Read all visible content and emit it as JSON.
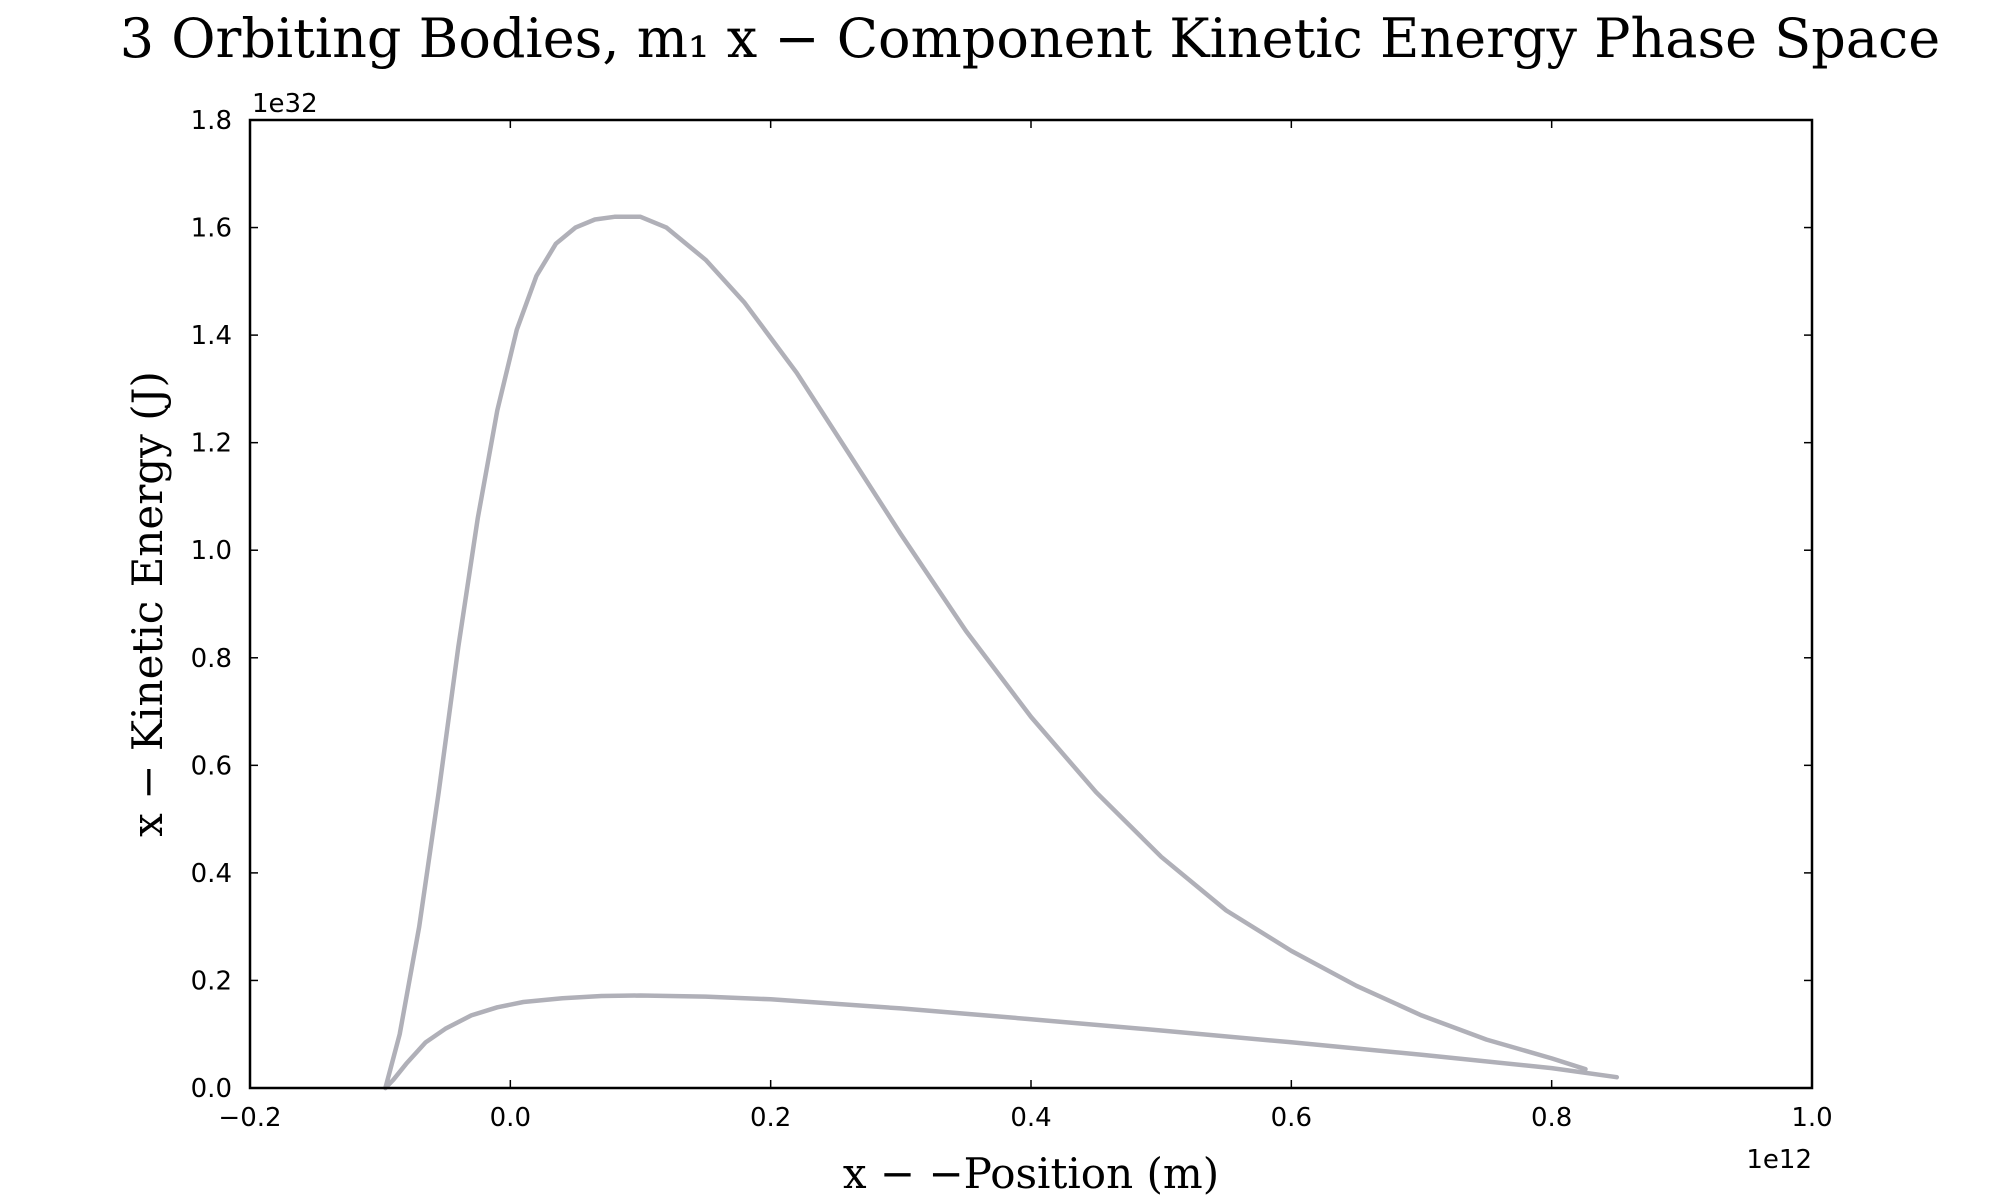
{
  "colors": {
    "series": "#b0b0b8",
    "axes": "#000000"
  },
  "chart_data": {
    "type": "line",
    "title": "3 Orbiting Bodies, m₁ x − Component Kinetic Energy Phase Space",
    "xlabel": "x − −Position (m)",
    "ylabel": "x − Kinetic Energy (J)",
    "x_offset_text": "1e12",
    "y_offset_text": "1e32",
    "xlim": [
      -0.2,
      1.0
    ],
    "ylim": [
      0.0,
      1.8
    ],
    "x_ticks": [
      -0.2,
      0.0,
      0.2,
      0.4,
      0.6,
      0.8,
      1.0
    ],
    "x_tick_labels": [
      "−0.2",
      "0.0",
      "0.2",
      "0.4",
      "0.6",
      "0.8",
      "1.0"
    ],
    "y_ticks": [
      0.0,
      0.2,
      0.4,
      0.6,
      0.8,
      1.0,
      1.2,
      1.4,
      1.6,
      1.8
    ],
    "y_tick_labels": [
      "0.0",
      "0.2",
      "0.4",
      "0.6",
      "0.8",
      "1.0",
      "1.2",
      "1.4",
      "1.6",
      "1.8"
    ],
    "grid": false,
    "series": [
      {
        "x": [
          -0.096,
          -0.085,
          -0.07,
          -0.055,
          -0.04,
          -0.025,
          -0.01,
          0.005,
          0.02,
          0.035,
          0.05,
          0.065,
          0.08,
          0.1,
          0.12,
          0.15,
          0.18,
          0.22,
          0.26,
          0.3,
          0.35,
          0.4,
          0.45,
          0.5,
          0.55,
          0.6,
          0.65,
          0.7,
          0.75,
          0.8,
          0.826
        ],
        "y": [
          0.0,
          0.1,
          0.3,
          0.55,
          0.82,
          1.06,
          1.26,
          1.41,
          1.51,
          1.57,
          1.6,
          1.615,
          1.62,
          1.62,
          1.6,
          1.54,
          1.46,
          1.33,
          1.18,
          1.03,
          0.85,
          0.69,
          0.55,
          0.43,
          0.33,
          0.255,
          0.19,
          0.135,
          0.09,
          0.055,
          0.035
        ]
      },
      {
        "x": [
          -0.096,
          -0.09,
          -0.08,
          -0.065,
          -0.05,
          -0.03,
          -0.01,
          0.01,
          0.04,
          0.07,
          0.1,
          0.15,
          0.2,
          0.3,
          0.4,
          0.5,
          0.6,
          0.7,
          0.8,
          0.85
        ],
        "y": [
          0.0,
          0.015,
          0.045,
          0.085,
          0.11,
          0.135,
          0.15,
          0.16,
          0.167,
          0.171,
          0.172,
          0.17,
          0.165,
          0.148,
          0.128,
          0.107,
          0.085,
          0.062,
          0.037,
          0.02
        ]
      }
    ]
  }
}
